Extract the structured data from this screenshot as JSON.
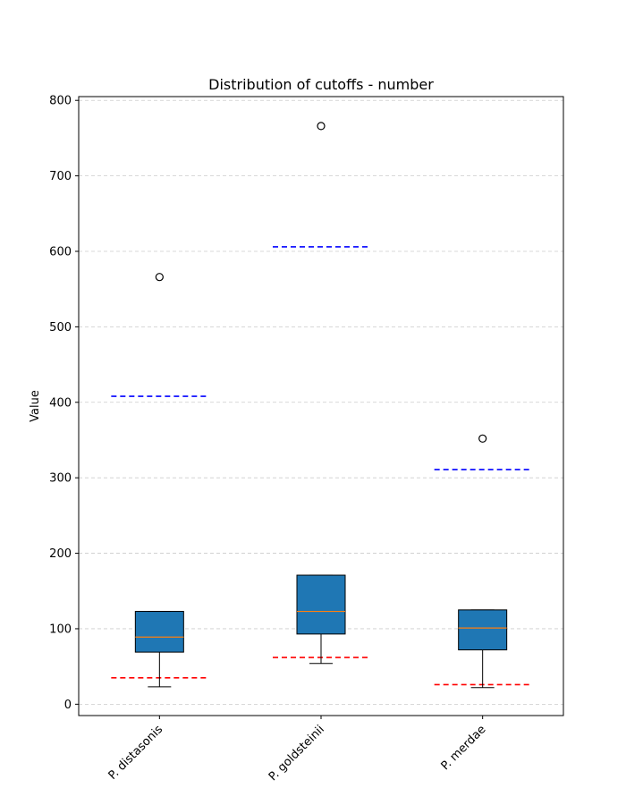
{
  "chart_data": {
    "type": "box",
    "title": "Distribution of cutoffs - number",
    "xlabel": "",
    "ylabel": "Value",
    "categories": [
      "P. distasonis",
      "P. goldsteinii",
      "P. merdae"
    ],
    "ylim": [
      -15,
      805
    ],
    "yticks": [
      0,
      100,
      200,
      300,
      400,
      500,
      600,
      700,
      800
    ],
    "grid": "y-dashed",
    "boxes": [
      {
        "category": "P. distasonis",
        "whisker_low": 23,
        "q1": 69,
        "median": 89,
        "q3": 123,
        "whisker_high": 123,
        "outliers": [
          566
        ],
        "ref_low": 35,
        "ref_high": 408
      },
      {
        "category": "P. goldsteinii",
        "whisker_low": 54,
        "q1": 93,
        "median": 123,
        "q3": 171,
        "whisker_high": 171,
        "outliers": [
          766
        ],
        "ref_low": 62,
        "ref_high": 606
      },
      {
        "category": "P. merdae",
        "whisker_low": 22,
        "q1": 72,
        "median": 101,
        "q3": 125,
        "whisker_high": 125,
        "outliers": [
          352
        ],
        "ref_low": 26,
        "ref_high": 311
      }
    ],
    "colors": {
      "box_fill": "#1f77b4",
      "median": "#ff7f0e",
      "ref_low": "#ff0000",
      "ref_high": "#0000ff",
      "grid": "#cccccc"
    }
  }
}
